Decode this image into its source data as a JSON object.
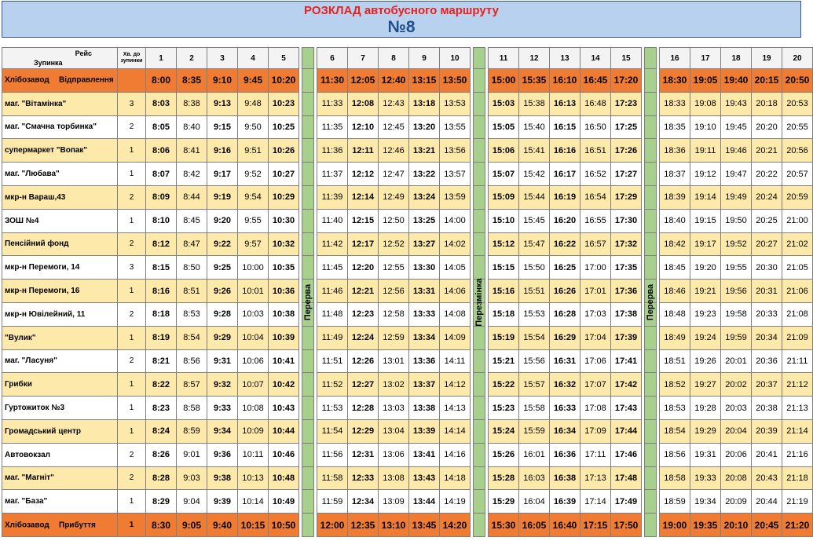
{
  "title": {
    "line1": "РОЗКЛАД автобусного маршруту",
    "line2": "№8"
  },
  "header": {
    "reis": "Рейс",
    "zupynka": "Зупинка",
    "hv": "Хв. до зупинки",
    "trips": [
      "1",
      "2",
      "3",
      "4",
      "5",
      "6",
      "7",
      "8",
      "9",
      "10",
      "11",
      "12",
      "13",
      "14",
      "15",
      "16",
      "17",
      "18",
      "19",
      "20"
    ]
  },
  "breaks": [
    "Перерва",
    "Перезмінка",
    "Перерва"
  ],
  "depart": {
    "stop": "Хлібозавод",
    "label": "Відправлення",
    "hv": "",
    "times": [
      "8:00",
      "8:35",
      "9:10",
      "9:45",
      "10:20",
      "11:30",
      "12:05",
      "12:40",
      "13:15",
      "13:50",
      "15:00",
      "15:35",
      "16:10",
      "16:45",
      "17:20",
      "18:30",
      "19:05",
      "19:40",
      "20:15",
      "20:50"
    ]
  },
  "rows": [
    {
      "stop": "маг. \"Вітамінка\"",
      "hv": "3",
      "times": [
        "8:03",
        "8:38",
        "9:13",
        "9:48",
        "10:23",
        "11:33",
        "12:08",
        "12:43",
        "13:18",
        "13:53",
        "15:03",
        "15:38",
        "16:13",
        "16:48",
        "17:23",
        "18:33",
        "19:08",
        "19:43",
        "20:18",
        "20:53"
      ]
    },
    {
      "stop": "маг. \"Смачна торбинка\"",
      "hv": "2",
      "times": [
        "8:05",
        "8:40",
        "9:15",
        "9:50",
        "10:25",
        "11:35",
        "12:10",
        "12:45",
        "13:20",
        "13:55",
        "15:05",
        "15:40",
        "16:15",
        "16:50",
        "17:25",
        "18:35",
        "19:10",
        "19:45",
        "20:20",
        "20:55"
      ]
    },
    {
      "stop": "супермаркет \"Вопак\"",
      "hv": "1",
      "times": [
        "8:06",
        "8:41",
        "9:16",
        "9:51",
        "10:26",
        "11:36",
        "12:11",
        "12:46",
        "13:21",
        "13:56",
        "15:06",
        "15:41",
        "16:16",
        "16:51",
        "17:26",
        "18:36",
        "19:11",
        "19:46",
        "20:21",
        "20:56"
      ]
    },
    {
      "stop": "маг. \"Любава\"",
      "hv": "1",
      "times": [
        "8:07",
        "8:42",
        "9:17",
        "9:52",
        "10:27",
        "11:37",
        "12:12",
        "12:47",
        "13:22",
        "13:57",
        "15:07",
        "15:42",
        "16:17",
        "16:52",
        "17:27",
        "18:37",
        "19:12",
        "19:47",
        "20:22",
        "20:57"
      ]
    },
    {
      "stop": "мкр-н Вараш,43",
      "hv": "2",
      "times": [
        "8:09",
        "8:44",
        "9:19",
        "9:54",
        "10:29",
        "11:39",
        "12:14",
        "12:49",
        "13:24",
        "13:59",
        "15:09",
        "15:44",
        "16:19",
        "16:54",
        "17:29",
        "18:39",
        "19:14",
        "19:49",
        "20:24",
        "20:59"
      ]
    },
    {
      "stop": "ЗОШ №4",
      "hv": "1",
      "times": [
        "8:10",
        "8:45",
        "9:20",
        "9:55",
        "10:30",
        "11:40",
        "12:15",
        "12:50",
        "13:25",
        "14:00",
        "15:10",
        "15:45",
        "16:20",
        "16:55",
        "17:30",
        "18:40",
        "19:15",
        "19:50",
        "20:25",
        "21:00"
      ]
    },
    {
      "stop": "Пенсійний фонд",
      "hv": "2",
      "times": [
        "8:12",
        "8:47",
        "9:22",
        "9:57",
        "10:32",
        "11:42",
        "12:17",
        "12:52",
        "13:27",
        "14:02",
        "15:12",
        "15:47",
        "16:22",
        "16:57",
        "17:32",
        "18:42",
        "19:17",
        "19:52",
        "20:27",
        "21:02"
      ]
    },
    {
      "stop": "мкр-н Перемоги, 14",
      "hv": "3",
      "times": [
        "8:15",
        "8:50",
        "9:25",
        "10:00",
        "10:35",
        "11:45",
        "12:20",
        "12:55",
        "13:30",
        "14:05",
        "15:15",
        "15:50",
        "16:25",
        "17:00",
        "17:35",
        "18:45",
        "19:20",
        "19:55",
        "20:30",
        "21:05"
      ]
    },
    {
      "stop": "мкр-н Перемоги, 16",
      "hv": "1",
      "times": [
        "8:16",
        "8:51",
        "9:26",
        "10:01",
        "10:36",
        "11:46",
        "12:21",
        "12:56",
        "13:31",
        "14:06",
        "15:16",
        "15:51",
        "16:26",
        "17:01",
        "17:36",
        "18:46",
        "19:21",
        "19:56",
        "20:31",
        "21:06"
      ]
    },
    {
      "stop": "мкр-н Ювілейний, 11",
      "hv": "2",
      "times": [
        "8:18",
        "8:53",
        "9:28",
        "10:03",
        "10:38",
        "11:48",
        "12:23",
        "12:58",
        "13:33",
        "14:08",
        "15:18",
        "15:53",
        "16:28",
        "17:03",
        "17:38",
        "18:48",
        "19:23",
        "19:58",
        "20:33",
        "21:08"
      ]
    },
    {
      "stop": "\"Вулик\"",
      "hv": "1",
      "times": [
        "8:19",
        "8:54",
        "9:29",
        "10:04",
        "10:39",
        "11:49",
        "12:24",
        "12:59",
        "13:34",
        "14:09",
        "15:19",
        "15:54",
        "16:29",
        "17:04",
        "17:39",
        "18:49",
        "19:24",
        "19:59",
        "20:34",
        "21:09"
      ]
    },
    {
      "stop": "маг. \"Ласуня\"",
      "hv": "2",
      "times": [
        "8:21",
        "8:56",
        "9:31",
        "10:06",
        "10:41",
        "11:51",
        "12:26",
        "13:01",
        "13:36",
        "14:11",
        "15:21",
        "15:56",
        "16:31",
        "17:06",
        "17:41",
        "18:51",
        "19:26",
        "20:01",
        "20:36",
        "21:11"
      ]
    },
    {
      "stop": "Грибки",
      "hv": "1",
      "times": [
        "8:22",
        "8:57",
        "9:32",
        "10:07",
        "10:42",
        "11:52",
        "12:27",
        "13:02",
        "13:37",
        "14:12",
        "15:22",
        "15:57",
        "16:32",
        "17:07",
        "17:42",
        "18:52",
        "19:27",
        "20:02",
        "20:37",
        "21:12"
      ]
    },
    {
      "stop": "Гуртожиток №3",
      "hv": "1",
      "times": [
        "8:23",
        "8:58",
        "9:33",
        "10:08",
        "10:43",
        "11:53",
        "12:28",
        "13:03",
        "13:38",
        "14:13",
        "15:23",
        "15:58",
        "16:33",
        "17:08",
        "17:43",
        "18:53",
        "19:28",
        "20:03",
        "20:38",
        "21:13"
      ]
    },
    {
      "stop": "Громадський центр",
      "hv": "1",
      "times": [
        "8:24",
        "8:59",
        "9:34",
        "10:09",
        "10:44",
        "11:54",
        "12:29",
        "13:04",
        "13:39",
        "14:14",
        "15:24",
        "15:59",
        "16:34",
        "17:09",
        "17:44",
        "18:54",
        "19:29",
        "20:04",
        "20:39",
        "21:14"
      ]
    },
    {
      "stop": "Автовокзал",
      "hv": "2",
      "times": [
        "8:26",
        "9:01",
        "9:36",
        "10:11",
        "10:46",
        "11:56",
        "12:31",
        "13:06",
        "13:41",
        "14:16",
        "15:26",
        "16:01",
        "16:36",
        "17:11",
        "17:46",
        "18:56",
        "19:31",
        "20:06",
        "20:41",
        "21:16"
      ]
    },
    {
      "stop": "маг. \"Магніт\"",
      "hv": "2",
      "times": [
        "8:28",
        "9:03",
        "9:38",
        "10:13",
        "10:48",
        "11:58",
        "12:33",
        "13:08",
        "13:43",
        "14:18",
        "15:28",
        "16:03",
        "16:38",
        "17:13",
        "17:48",
        "18:58",
        "19:33",
        "20:08",
        "20:43",
        "21:18"
      ]
    },
    {
      "stop": "маг. \"База\"",
      "hv": "1",
      "times": [
        "8:29",
        "9:04",
        "9:39",
        "10:14",
        "10:49",
        "11:59",
        "12:34",
        "13:09",
        "13:44",
        "14:19",
        "15:29",
        "16:04",
        "16:39",
        "17:14",
        "17:49",
        "18:59",
        "19:34",
        "20:09",
        "20:44",
        "21:19"
      ]
    }
  ],
  "arrive": {
    "stop": "Хлібозавод",
    "label": "Прибуття",
    "hv": "1",
    "times": [
      "8:30",
      "9:05",
      "9:40",
      "10:15",
      "10:50",
      "12:00",
      "12:35",
      "13:10",
      "13:45",
      "14:20",
      "15:30",
      "16:05",
      "16:40",
      "17:15",
      "17:50",
      "19:00",
      "19:35",
      "20:10",
      "20:45",
      "21:20"
    ]
  },
  "bold_trips": [
    1,
    3,
    5,
    7,
    9,
    11,
    13,
    15
  ],
  "colors": {
    "odd_row": "#fde9a9",
    "end_row": "#f07c34",
    "break_col": "#a8d08d",
    "title_bg": "#b7d1ee",
    "title_red": "#e8201f",
    "title_blue": "#1f4f8c"
  }
}
